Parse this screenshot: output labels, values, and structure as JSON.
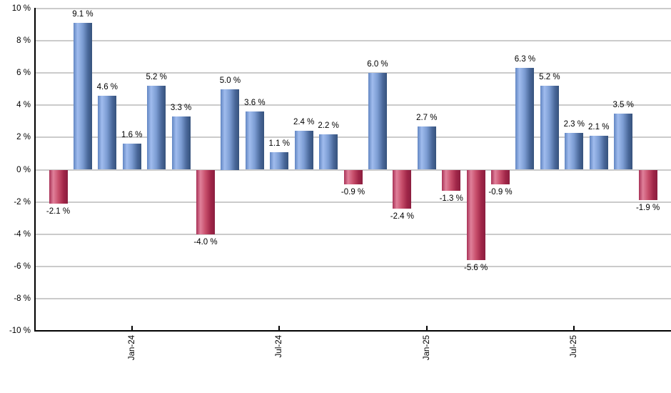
{
  "chart_data": {
    "type": "bar",
    "title": "",
    "unit": "%",
    "categories": [
      "Oct-23",
      "Nov-23",
      "Dec-23",
      "Jan-24",
      "Feb-24",
      "Mar-24",
      "Apr-24",
      "May-24",
      "Jun-24",
      "Jul-24",
      "Aug-24",
      "Sep-24",
      "Oct-24",
      "Nov-24",
      "Dec-24",
      "Jan-25",
      "Feb-25",
      "Mar-25",
      "Apr-25",
      "May-25",
      "Jun-25",
      "Jul-25",
      "Aug-25",
      "Sep-25",
      "Oct-25"
    ],
    "values": [
      -2.1,
      9.1,
      4.6,
      1.6,
      5.2,
      3.3,
      -4.0,
      5.0,
      3.6,
      1.1,
      2.4,
      2.2,
      -0.9,
      6.0,
      -2.4,
      2.7,
      -1.3,
      -5.6,
      -0.9,
      6.3,
      5.2,
      2.3,
      2.1,
      3.5,
      -1.9
    ],
    "value_label_suffix": " %",
    "x_tick_labels": [
      {
        "index": 3,
        "label": "Jan-24"
      },
      {
        "index": 9,
        "label": "Jul-24"
      },
      {
        "index": 15,
        "label": "Jan-25"
      },
      {
        "index": 21,
        "label": "Jul-25"
      }
    ],
    "y_ticks": [
      10,
      8,
      6,
      4,
      2,
      0,
      -2,
      -4,
      -6,
      -8,
      -10
    ],
    "y_tick_suffix": " %",
    "ylim": [
      -10,
      10
    ],
    "grid": true,
    "legend": "none",
    "colors": {
      "positive_gradient": [
        "#6286c2",
        "#a0bcee",
        "#7b9cd2",
        "#4a689a",
        "#36527c"
      ],
      "negative_gradient": [
        "#a83156",
        "#e0809a",
        "#c74e6b",
        "#a02648",
        "#8a1e3f"
      ],
      "grid_color": "#cbcbcb",
      "axis_color": "#000000",
      "label_color": "#000000"
    }
  }
}
